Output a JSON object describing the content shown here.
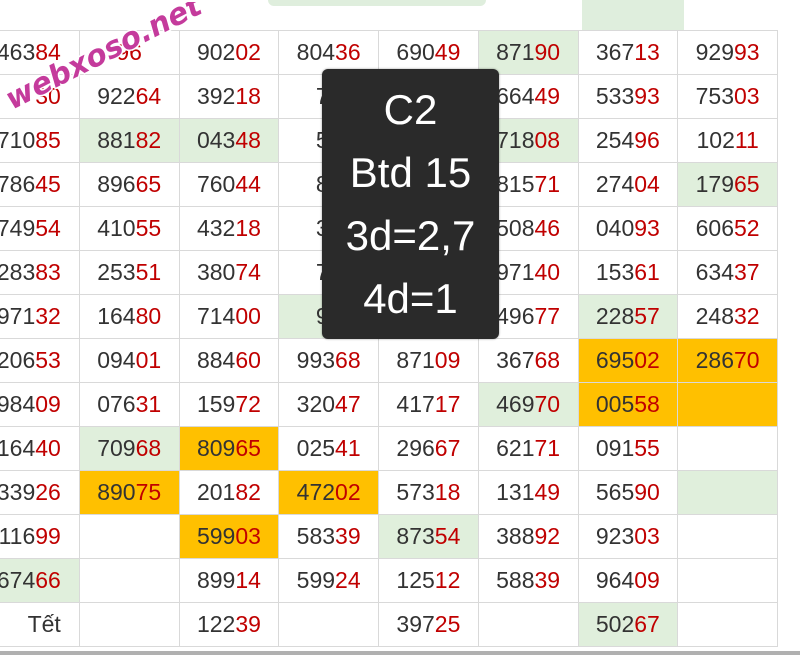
{
  "rows": [
    [
      [
        "463",
        "84"
      ],
      [
        "",
        "96"
      ],
      [
        "902",
        "02"
      ],
      [
        "804",
        "36"
      ],
      [
        "690",
        "49"
      ],
      [
        "871",
        "90"
      ],
      [
        "367",
        "13"
      ],
      [
        "929",
        "93"
      ]
    ],
    [
      [
        "",
        "30"
      ],
      [
        "922",
        "64"
      ],
      [
        "392",
        "18"
      ],
      [
        "78",
        ""
      ],
      [
        "",
        ""
      ],
      [
        "664",
        "49"
      ],
      [
        "533",
        "93"
      ],
      [
        "753",
        "03"
      ]
    ],
    [
      [
        "710",
        "85"
      ],
      [
        "881",
        "82"
      ],
      [
        "043",
        "48"
      ],
      [
        "58",
        ""
      ],
      [
        "",
        ""
      ],
      [
        "718",
        "08"
      ],
      [
        "254",
        "96"
      ],
      [
        "102",
        "11"
      ]
    ],
    [
      [
        "786",
        "45"
      ],
      [
        "896",
        "65"
      ],
      [
        "760",
        "44"
      ],
      [
        "89",
        ""
      ],
      [
        "",
        ""
      ],
      [
        "815",
        "71"
      ],
      [
        "274",
        "04"
      ],
      [
        "179",
        "65"
      ]
    ],
    [
      [
        "749",
        "54"
      ],
      [
        "410",
        "55"
      ],
      [
        "432",
        "18"
      ],
      [
        "31",
        ""
      ],
      [
        "",
        ""
      ],
      [
        "508",
        "46"
      ],
      [
        "040",
        "93"
      ],
      [
        "606",
        "52"
      ]
    ],
    [
      [
        "283",
        "83"
      ],
      [
        "253",
        "51"
      ],
      [
        "380",
        "74"
      ],
      [
        "77",
        ""
      ],
      [
        "",
        ""
      ],
      [
        "971",
        "40"
      ],
      [
        "153",
        "61"
      ],
      [
        "634",
        "37"
      ]
    ],
    [
      [
        "971",
        "32"
      ],
      [
        "164",
        "80"
      ],
      [
        "714",
        "00"
      ],
      [
        "97",
        ""
      ],
      [
        "",
        ""
      ],
      [
        "496",
        "77"
      ],
      [
        "228",
        "57"
      ],
      [
        "248",
        "32"
      ]
    ],
    [
      [
        "206",
        "53"
      ],
      [
        "094",
        "01"
      ],
      [
        "884",
        "60"
      ],
      [
        "993",
        "68"
      ],
      [
        "871",
        "09"
      ],
      [
        "367",
        "68"
      ],
      [
        "695",
        "02"
      ],
      [
        "286",
        "70"
      ]
    ],
    [
      [
        "984",
        "09"
      ],
      [
        "076",
        "31"
      ],
      [
        "159",
        "72"
      ],
      [
        "320",
        "47"
      ],
      [
        "417",
        "17"
      ],
      [
        "469",
        "70"
      ],
      [
        "005",
        "58"
      ],
      [
        "",
        ""
      ]
    ],
    [
      [
        "164",
        "40"
      ],
      [
        "709",
        "68"
      ],
      [
        "809",
        "65"
      ],
      [
        "025",
        "41"
      ],
      [
        "296",
        "67"
      ],
      [
        "621",
        "71"
      ],
      [
        "091",
        "55"
      ],
      [
        "",
        ""
      ]
    ],
    [
      [
        "339",
        "26"
      ],
      [
        "890",
        "75"
      ],
      [
        "201",
        "82"
      ],
      [
        "472",
        "02"
      ],
      [
        "573",
        "18"
      ],
      [
        "131",
        "49"
      ],
      [
        "565",
        "90"
      ],
      [
        "",
        ""
      ]
    ],
    [
      [
        "116",
        "99"
      ],
      [
        "",
        ""
      ],
      [
        "599",
        "03"
      ],
      [
        "583",
        "39"
      ],
      [
        "873",
        "54"
      ],
      [
        "388",
        "92"
      ],
      [
        "923",
        "03"
      ],
      [
        "",
        ""
      ]
    ],
    [
      [
        "674",
        "66"
      ],
      [
        "",
        ""
      ],
      [
        "899",
        "14"
      ],
      [
        "599",
        "24"
      ],
      [
        "125",
        "12"
      ],
      [
        "588",
        "39"
      ],
      [
        "964",
        "09"
      ],
      [
        "",
        ""
      ]
    ],
    [
      [
        "Tết",
        ""
      ],
      [
        "",
        ""
      ],
      [
        "122",
        "39"
      ],
      [
        "",
        ""
      ],
      [
        "397",
        "25"
      ],
      [
        "",
        ""
      ],
      [
        "502",
        "67"
      ],
      [
        "",
        ""
      ]
    ]
  ],
  "highlights": {
    "green": [
      "0-5",
      "2-1",
      "2-2",
      "2-5",
      "3-7",
      "6-3",
      "6-6",
      "8-5",
      "9-1",
      "11-4",
      "12-0",
      "13-6",
      "10-7"
    ],
    "orange": [
      "7-6",
      "7-7",
      "8-6",
      "8-7",
      "9-2",
      "10-1",
      "10-3",
      "11-2"
    ]
  },
  "overlay": {
    "line1": "C2",
    "line2": "Btd 15",
    "line3": "3d=2,7",
    "line4": "4d=1"
  },
  "watermark": {
    "text": "webxoso.net",
    "color": "#c43b9c"
  },
  "colors": {
    "tail": "#c00000",
    "head": "#333333",
    "green": "#e0efdc",
    "orange": "#ffc000"
  }
}
